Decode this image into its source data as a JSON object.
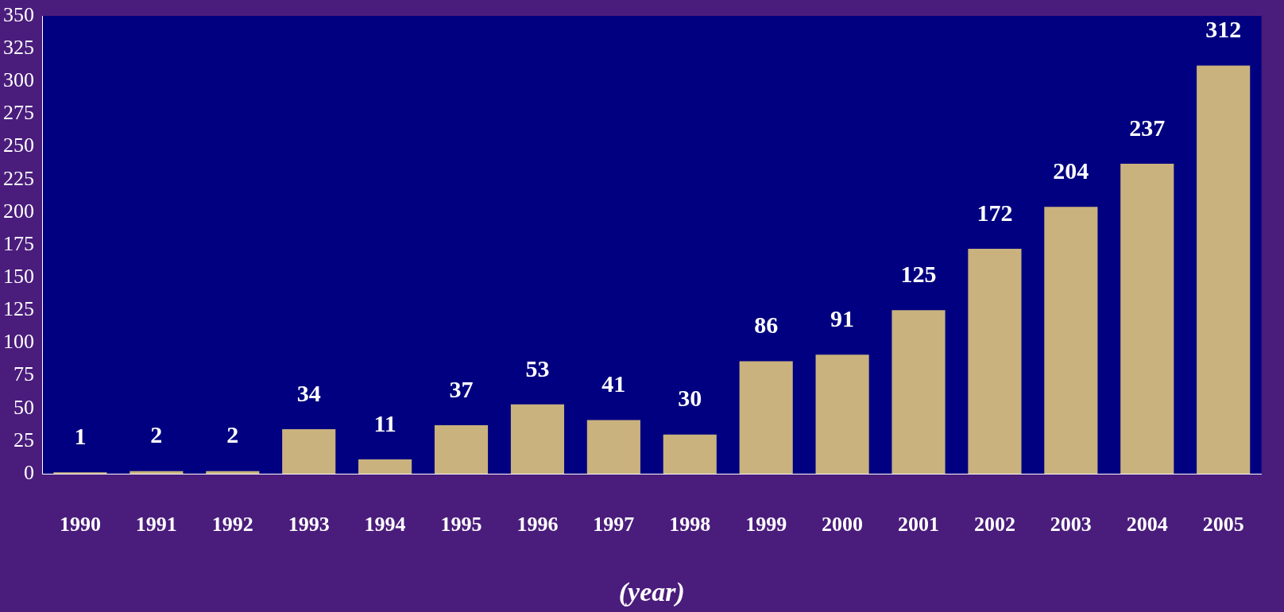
{
  "chart_data": {
    "type": "bar",
    "xlabel": "(year)",
    "categories": [
      "1990",
      "1991",
      "1992",
      "1993",
      "1994",
      "1995",
      "1996",
      "1997",
      "1998",
      "1999",
      "2000",
      "2001",
      "2002",
      "2003",
      "2004",
      "2005"
    ],
    "values": [
      1,
      2,
      2,
      34,
      11,
      37,
      53,
      41,
      30,
      86,
      91,
      125,
      172,
      204,
      237,
      312
    ],
    "color": "#c9b27e",
    "ylim": [
      0,
      350
    ],
    "yticks": [
      0,
      25,
      50,
      75,
      100,
      125,
      150,
      175,
      200,
      225,
      250,
      275,
      300,
      325,
      350
    ],
    "grid": false,
    "legend": false,
    "data_labels": true
  }
}
